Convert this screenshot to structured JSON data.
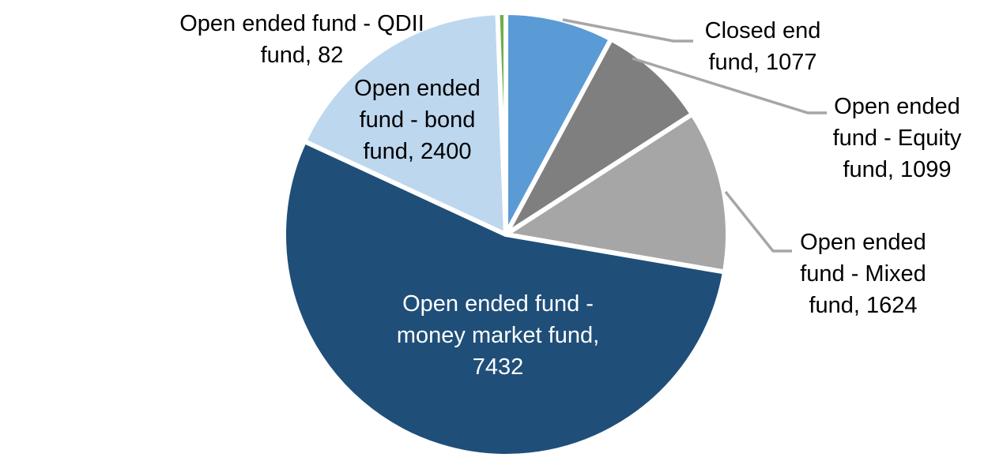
{
  "page": {
    "background_color": "#FFFFFF"
  },
  "chart_data": {
    "type": "pie",
    "title": "",
    "total": 13714,
    "start_angle_deg": 0,
    "direction": "clockwise",
    "slice_border_color": "#FFFFFF",
    "leader_line_color": "#A6A6A6",
    "slices": [
      {
        "id": "closed-end-fund",
        "label": "Closed end fund",
        "value": 1077,
        "color": "#5B9BD5",
        "label_lines": [
          "Closed end",
          "fund, 1077"
        ],
        "label_position": "outside",
        "label_color": "#000000",
        "leader_line": true
      },
      {
        "id": "equity-fund",
        "label": "Open ended fund - Equity fund",
        "value": 1099,
        "color": "#7F7F7F",
        "label_lines": [
          "Open ended",
          "fund - Equity",
          "fund, 1099"
        ],
        "label_position": "outside",
        "label_color": "#000000",
        "leader_line": true
      },
      {
        "id": "mixed-fund",
        "label": "Open ended fund - Mixed fund",
        "value": 1624,
        "color": "#A6A6A6",
        "label_lines": [
          "Open ended",
          "fund - Mixed",
          "fund, 1624"
        ],
        "label_position": "outside",
        "label_color": "#000000",
        "leader_line": true
      },
      {
        "id": "money-market-fund",
        "label": "Open ended fund - money market fund",
        "value": 7432,
        "color": "#1F4E79",
        "label_lines": [
          "Open ended fund -",
          "money market fund,",
          "7432"
        ],
        "label_position": "inside",
        "label_color": "#FFFFFF",
        "leader_line": false
      },
      {
        "id": "bond-fund",
        "label": "Open ended fund - bond fund",
        "value": 2400,
        "color": "#BDD7EE",
        "label_lines": [
          "Open ended",
          "fund - bond",
          "fund, 2400"
        ],
        "label_position": "inside",
        "label_color": "#000000",
        "leader_line": false
      },
      {
        "id": "qdii-fund",
        "label": "Open ended fund - QDII fund",
        "value": 82,
        "color": "#70AD47",
        "label_lines": [
          "Open ended fund - QDII",
          "fund, 82"
        ],
        "label_position": "outside",
        "label_color": "#000000",
        "leader_line": false
      }
    ]
  }
}
